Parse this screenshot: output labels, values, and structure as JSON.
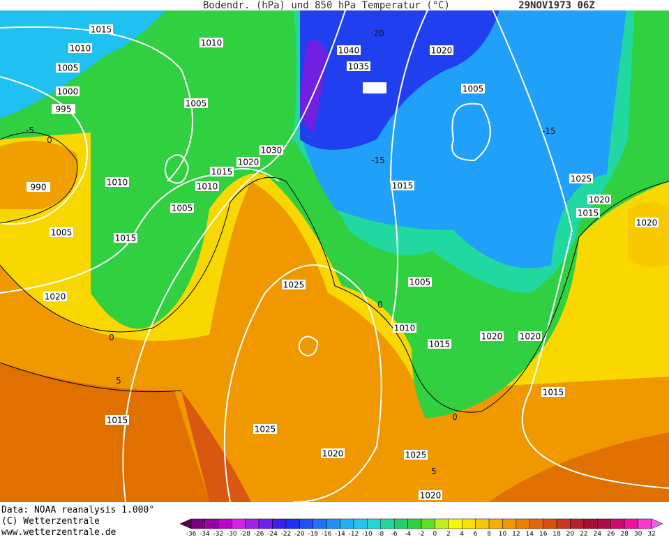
{
  "header": {
    "title": "Bodendr. (hPa) und 850 hPa Temperatur (°C)",
    "date": "29NOV1973 06Z"
  },
  "footer": {
    "source": "Data: NOAA reanalysis 1.000°",
    "copyright": "(C) Wetterzentrale",
    "url": "www.wetterzentrale.de"
  },
  "isobar_labels": [
    "1015",
    "1010",
    "1005",
    "1000",
    "995",
    "990",
    "1005",
    "1015",
    "1020",
    "1015",
    "1010",
    "1005",
    "1010",
    "1005",
    "1015",
    "1010",
    "1020",
    "1030",
    "1040",
    "1035",
    "1020",
    "1005",
    "1015",
    "1025",
    "1020",
    "1015",
    "1020",
    "1025",
    "1005",
    "1010",
    "1015",
    "1020",
    "1020",
    "1015",
    "1025",
    "1020",
    "1025",
    "1020"
  ],
  "temperature_labels": [
    "-5",
    "0",
    "-20",
    "-15",
    "-15",
    "0",
    "5",
    "5",
    "0",
    "0"
  ],
  "scale": {
    "labels": [
      "-36",
      "-34",
      "-32",
      "-30",
      "-28",
      "-26",
      "-24",
      "-22",
      "-20",
      "-18",
      "-16",
      "-14",
      "-12",
      "-10",
      "-8",
      "-6",
      "-4",
      "-2",
      "0",
      "2",
      "4",
      "6",
      "8",
      "10",
      "12",
      "14",
      "16",
      "18",
      "20",
      "22",
      "24",
      "26",
      "28",
      "30",
      "32"
    ],
    "colors": [
      "#5a0050",
      "#7a0080",
      "#9a00a8",
      "#c000d0",
      "#d820e8",
      "#a020f0",
      "#7020f0",
      "#4020e8",
      "#2030f0",
      "#2050f0",
      "#2070f8",
      "#2090f8",
      "#20b0f8",
      "#20c8f0",
      "#20d8d0",
      "#20d8a0",
      "#20d070",
      "#30d040",
      "#60e020",
      "#c0f020",
      "#f8f800",
      "#f8e000",
      "#f8c800",
      "#f8b000",
      "#f09800",
      "#e88000",
      "#e06800",
      "#d85010",
      "#c83820",
      "#b82028",
      "#a81030",
      "#b00848",
      "#d00870",
      "#f010a0",
      "#f838d0",
      "#f060f0"
    ]
  }
}
